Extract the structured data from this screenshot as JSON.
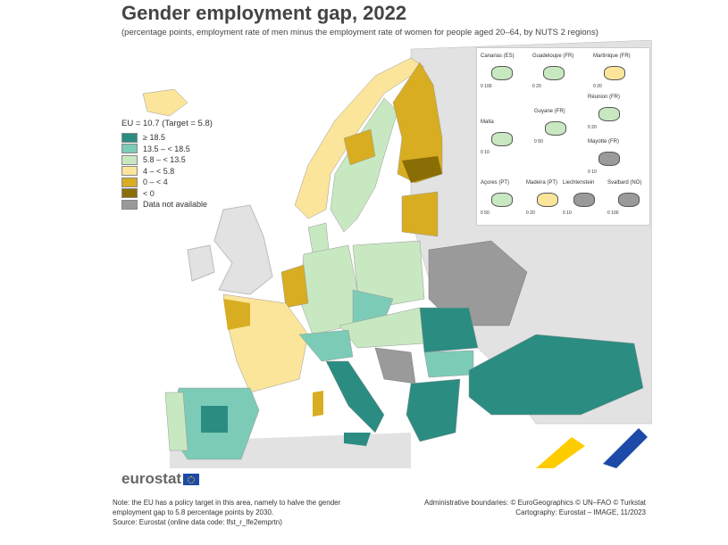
{
  "title": "Gender employment gap, 2022",
  "subtitle": "(percentage points, employment rate of men minus the employment rate of women for people aged 20–64, by NUTS 2 regions)",
  "legend": {
    "title": "EU = 10.7 (Target = 5.8)",
    "items": [
      {
        "label": "≥ 18.5",
        "color": "#2b8c82"
      },
      {
        "label": "13.5 – < 18.5",
        "color": "#7ccbb6"
      },
      {
        "label": "5.8 – < 13.5",
        "color": "#c8e8c1"
      },
      {
        "label": "4 – < 5.8",
        "color": "#fbe59a"
      },
      {
        "label": "0 – < 4",
        "color": "#d8ad22"
      },
      {
        "label": "< 0",
        "color": "#8a6d05"
      },
      {
        "label": "Data not available",
        "color": "#9a9a9a"
      }
    ]
  },
  "insets": [
    {
      "name": "Canarias (ES)",
      "scale": "0   100"
    },
    {
      "name": "Guadeloupe (FR)",
      "scale": "0  20"
    },
    {
      "name": "Martinique (FR)",
      "scale": "0  20"
    },
    {
      "name": "Réunion (FR)",
      "scale": "0  20"
    },
    {
      "name": "Malta",
      "scale": "0  10"
    },
    {
      "name": "Guyane (FR)",
      "scale": "0  50"
    },
    {
      "name": "Mayotte (FR)",
      "scale": "0  10"
    },
    {
      "name": "Açores (PT)",
      "scale": "0  50"
    },
    {
      "name": "Madeira (PT)",
      "scale": "0  20"
    },
    {
      "name": "Liechtenstein",
      "scale": "0  10"
    },
    {
      "name": "Svalbard (NO)",
      "scale": "0 100"
    }
  ],
  "logo": "eurostat",
  "note": [
    "Note: the EU has a policy target in this area, namely to halve the gender",
    "employment gap to 5.8 percentage points by 2030.",
    "Source: Eurostat (online data code: lfst_r_lfe2emprtn)"
  ],
  "credits": [
    "Administrative boundaries: © EuroGeographics © UN–FAO © Turkstat",
    "Cartography: Eurostat – IMAGE, 11/2023"
  ]
}
